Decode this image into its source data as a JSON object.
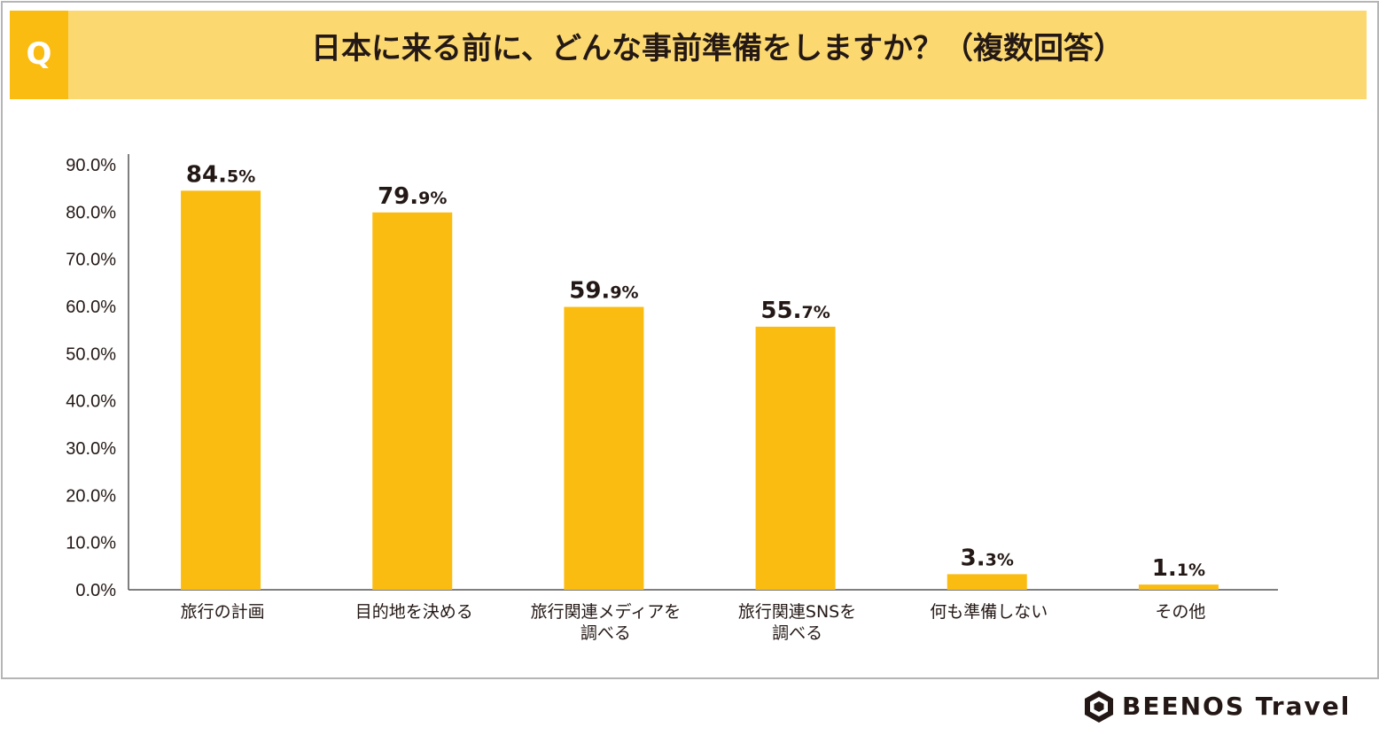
{
  "header": {
    "q_label": "Q",
    "title": "日本に来る前に、どんな事前準備をしますか？（複数回答）"
  },
  "colors": {
    "bar": "#fbbc12",
    "header_bg": "#fcd970",
    "q_box": "#fbbc12",
    "text": "#231815",
    "axis": "#555555",
    "frame": "#b5b5b5"
  },
  "chart_data": {
    "type": "bar",
    "title": "日本に来る前に、どんな事前準備をしますか？（複数回答）",
    "xlabel": "",
    "ylabel": "",
    "categories": [
      [
        "旅行の計画"
      ],
      [
        "目的地を決める"
      ],
      [
        "旅行関連メディアを",
        "調べる"
      ],
      [
        "旅行関連SNSを",
        "調べる"
      ],
      [
        "何も準備しない"
      ],
      [
        "その他"
      ]
    ],
    "values": [
      84.5,
      79.9,
      59.9,
      55.7,
      3.3,
      1.1
    ],
    "data_labels": [
      {
        "int": "84.",
        "dec": "5%"
      },
      {
        "int": "79.",
        "dec": "9%"
      },
      {
        "int": "59.",
        "dec": "9%"
      },
      {
        "int": "55.",
        "dec": "7%"
      },
      {
        "int": "3.",
        "dec": "3%"
      },
      {
        "int": "1.",
        "dec": "1%"
      }
    ],
    "y_ticks": [
      "0.0%",
      "10.0%",
      "20.0%",
      "30.0%",
      "40.0%",
      "50.0%",
      "60.0%",
      "70.0%",
      "80.0%",
      "90.0%"
    ],
    "ylim": [
      0,
      90
    ],
    "grid": false,
    "legend": "none"
  },
  "logo": {
    "text": "BEENOS Travel",
    "icon": "hexagon-logo-icon"
  }
}
